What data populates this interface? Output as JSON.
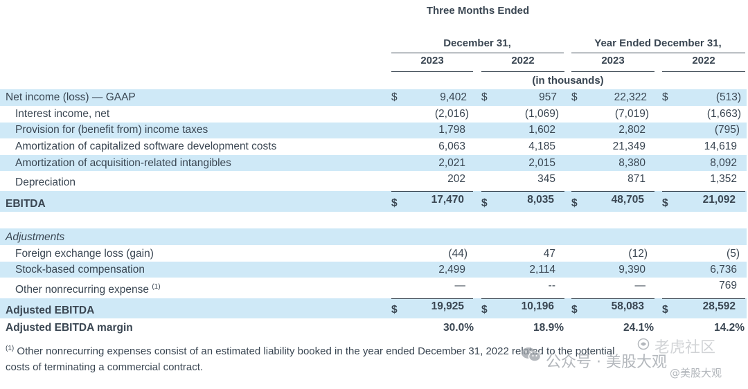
{
  "header": {
    "three_months": "Three Months Ended",
    "december": "December 31,",
    "year_ended": "Year Ended December 31,",
    "years": [
      "2023",
      "2022",
      "2023",
      "2022"
    ],
    "units": "(in thousands)"
  },
  "rows": {
    "net_income": {
      "label": "Net income (loss) — GAAP",
      "cur": [
        "$",
        "$",
        "$",
        "$"
      ],
      "v": [
        "9,402",
        "957",
        "22,322",
        "(513)"
      ]
    },
    "interest": {
      "label": "Interest income, net",
      "v": [
        "(2,016)",
        "(1,069)",
        "(7,019)",
        "(1,663)"
      ]
    },
    "provision": {
      "label": "Provision for (benefit from) income taxes",
      "v": [
        "1,798",
        "1,602",
        "2,802",
        "(795)"
      ]
    },
    "amort_sw": {
      "label": "Amortization of capitalized software development costs",
      "v": [
        "6,063",
        "4,185",
        "21,349",
        "14,619"
      ]
    },
    "amort_acq": {
      "label": "Amortization of acquisition-related intangibles",
      "v": [
        "2,021",
        "2,015",
        "8,380",
        "8,092"
      ]
    },
    "depreciation": {
      "label": "Depreciation",
      "v": [
        "202",
        "345",
        "871",
        "1,352"
      ]
    },
    "ebitda": {
      "label": "EBITDA",
      "cur": [
        "$",
        "$",
        "$",
        "$"
      ],
      "v": [
        "17,470",
        "8,035",
        "48,705",
        "21,092"
      ]
    },
    "adjustments": {
      "label": "Adjustments"
    },
    "fx": {
      "label": "Foreign exchange loss (gain)",
      "v": [
        "(44)",
        "47",
        "(12)",
        "(5)"
      ]
    },
    "sbc": {
      "label": "Stock-based compensation",
      "v": [
        "2,499",
        "2,114",
        "9,390",
        "6,736"
      ]
    },
    "other": {
      "label": "Other nonrecurring expense",
      "sup": "(1)",
      "v": [
        "—",
        "--",
        "—",
        "769"
      ]
    },
    "adj_ebitda": {
      "label": "Adjusted EBITDA",
      "cur": [
        "$",
        "$",
        "$",
        "$"
      ],
      "v": [
        "19,925",
        "10,196",
        "58,083",
        "28,592"
      ]
    },
    "adj_margin": {
      "label": "Adjusted EBITDA margin",
      "v": [
        "30.0%",
        "18.9%",
        "24.1%",
        "14.2%"
      ]
    }
  },
  "footnote": {
    "sup": "(1)",
    "line1": " Other nonrecurring expenses consist of an estimated liability booked in the year ended December 31, 2022 related to the potential",
    "line2": "costs of terminating a commercial contract."
  },
  "watermark": {
    "text1": "公众号 · 美股大观",
    "text2": "老虎社区",
    "text3": "@美股大观"
  }
}
